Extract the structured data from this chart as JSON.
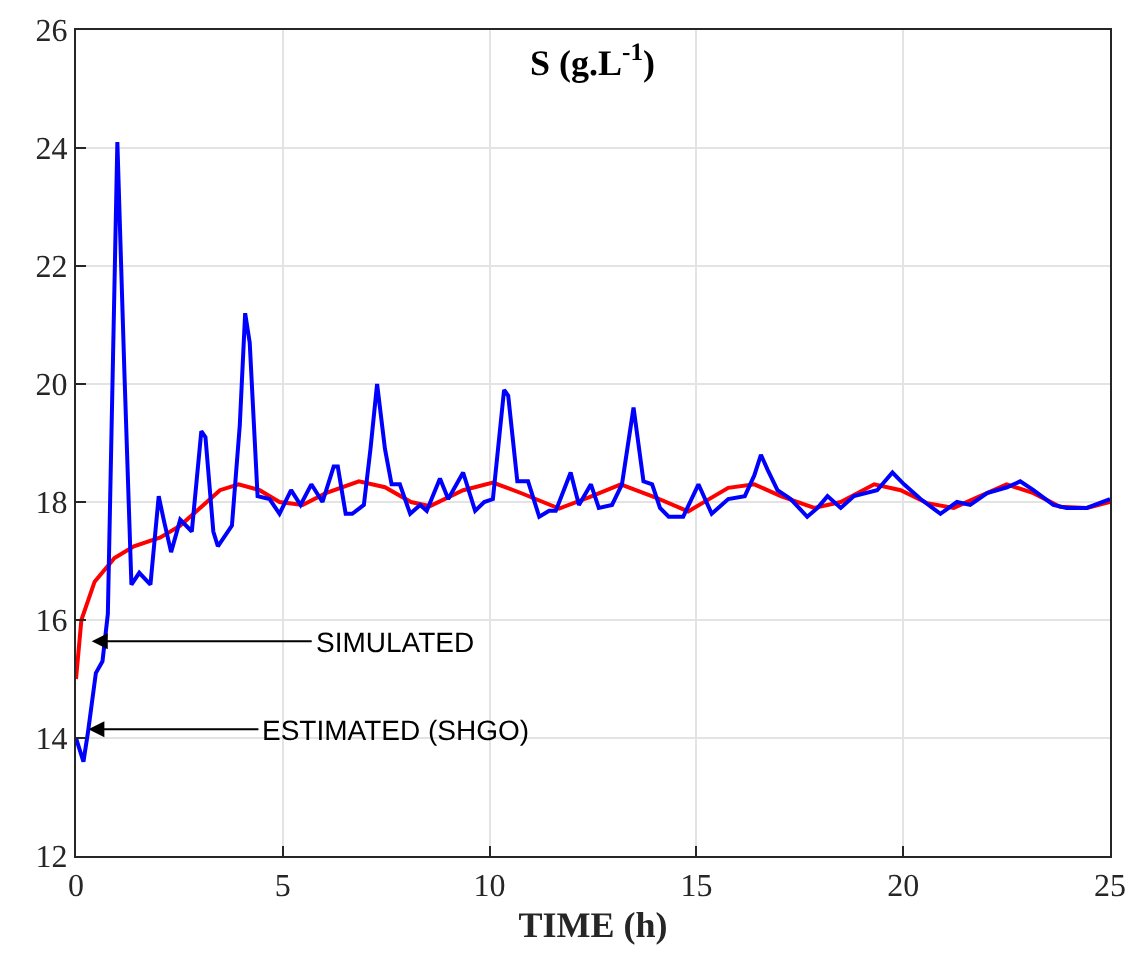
{
  "chart_data": {
    "type": "line",
    "title": "S (g.L$^{-1}$)",
    "xlabel": "TIME (h)",
    "xlim": [
      0,
      25
    ],
    "xticks": [
      0,
      5,
      10,
      15,
      20,
      25
    ],
    "ylim": [
      12,
      26
    ],
    "yticks": [
      12,
      14,
      16,
      18,
      20,
      22,
      24,
      26
    ],
    "grid": true,
    "marker": "none",
    "line_style": "solid",
    "series": [
      {
        "color": "#ff0000",
        "x": [
          0,
          0.13,
          0.45,
          0.93,
          1.4,
          2.04,
          2.52,
          3.0,
          3.48,
          3.93,
          4.44,
          4.92,
          5.48,
          6.04,
          6.84,
          7.47,
          8.1,
          8.56,
          9.36,
          10.08,
          10.8,
          11.68,
          12.4,
          13.17,
          14.0,
          14.8,
          15.77,
          16.4,
          17.04,
          17.85,
          18.49,
          19.3,
          19.94,
          20.58,
          21.22,
          21.86,
          22.5,
          23.15,
          23.79,
          24.44,
          25
        ],
        "values": [
          15.0,
          16.0,
          16.65,
          17.05,
          17.25,
          17.4,
          17.6,
          17.9,
          18.2,
          18.3,
          18.2,
          18.0,
          17.95,
          18.15,
          18.35,
          18.25,
          18.0,
          17.93,
          18.2,
          18.33,
          18.14,
          17.89,
          18.08,
          18.3,
          18.08,
          17.84,
          18.24,
          18.3,
          18.1,
          17.9,
          18.0,
          18.3,
          18.2,
          17.98,
          17.9,
          18.1,
          18.3,
          18.15,
          17.92,
          17.9,
          18.0
        ]
      },
      {
        "color": "#0000ff",
        "x": [
          0,
          0.18,
          0.29,
          0.48,
          0.64,
          0.77,
          1.0,
          1.17,
          1.34,
          1.53,
          1.8,
          2.0,
          2.12,
          2.3,
          2.52,
          2.8,
          3.03,
          3.13,
          3.32,
          3.43,
          3.77,
          3.96,
          4.09,
          4.2,
          4.39,
          4.68,
          4.92,
          5.2,
          5.43,
          5.69,
          5.96,
          6.23,
          6.33,
          6.52,
          6.68,
          6.96,
          7.12,
          7.28,
          7.47,
          7.63,
          7.83,
          8.08,
          8.32,
          8.48,
          8.8,
          9.0,
          9.36,
          9.65,
          9.87,
          10.08,
          10.35,
          10.45,
          10.67,
          10.93,
          11.2,
          11.44,
          11.6,
          11.96,
          12.16,
          12.45,
          12.64,
          12.96,
          13.2,
          13.48,
          13.72,
          13.93,
          14.12,
          14.33,
          14.68,
          15.05,
          15.37,
          15.77,
          16.17,
          16.4,
          16.56,
          16.72,
          16.96,
          17.28,
          17.68,
          17.93,
          18.17,
          18.49,
          18.81,
          19.37,
          19.74,
          20.02,
          20.42,
          20.9,
          21.3,
          21.62,
          22.03,
          22.51,
          22.83,
          23.15,
          23.63,
          23.95,
          24.44,
          25
        ],
        "values": [
          14.0,
          13.6,
          14.1,
          15.1,
          15.3,
          16.1,
          24.1,
          20.2,
          16.6,
          16.8,
          16.6,
          18.1,
          17.7,
          17.15,
          17.7,
          17.5,
          19.2,
          19.1,
          17.5,
          17.25,
          17.6,
          19.3,
          21.2,
          20.7,
          18.1,
          18.05,
          17.8,
          18.2,
          17.95,
          18.3,
          18.0,
          18.6,
          18.6,
          17.8,
          17.8,
          17.95,
          18.9,
          20.0,
          18.9,
          18.3,
          18.3,
          17.8,
          17.95,
          17.85,
          18.4,
          18.05,
          18.5,
          17.85,
          18.0,
          18.05,
          19.9,
          19.8,
          18.35,
          18.35,
          17.75,
          17.85,
          17.85,
          18.5,
          17.95,
          18.3,
          17.9,
          17.95,
          18.3,
          19.6,
          18.35,
          18.3,
          17.9,
          17.75,
          17.75,
          18.3,
          17.8,
          18.05,
          18.1,
          18.45,
          18.8,
          18.55,
          18.2,
          18.05,
          17.75,
          17.9,
          18.1,
          17.9,
          18.1,
          18.2,
          18.5,
          18.3,
          18.05,
          17.8,
          18.0,
          17.95,
          18.15,
          18.25,
          18.35,
          18.2,
          17.95,
          17.9,
          17.9,
          18.05
        ]
      }
    ],
    "annotations": [
      {
        "text": "SIMULATED",
        "x": 0.38,
        "y": 15.64
      },
      {
        "text": "ESTIMATED (SHGO)",
        "x": 0.3,
        "y": 14.15
      }
    ]
  }
}
